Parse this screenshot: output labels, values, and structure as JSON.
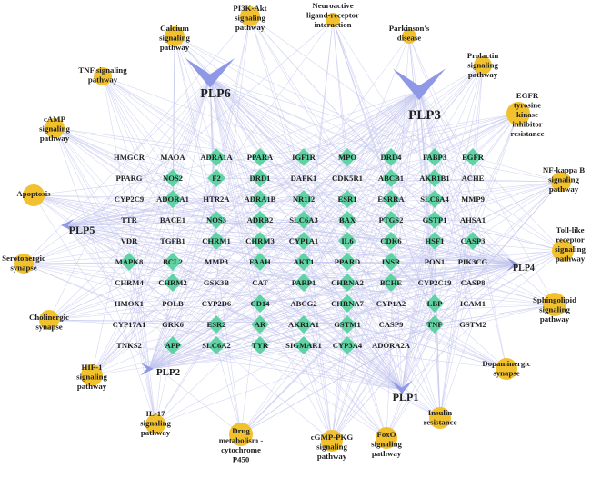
{
  "colors": {
    "gene": "#5fd3a4",
    "pathway": "#f2c12e",
    "compound": "#8e98e6",
    "edge": "#c3c6ee"
  },
  "compounds": [
    "PLP6",
    "PLP3",
    "PLP5",
    "PLP4",
    "PLP2",
    "PLP1"
  ],
  "pathways": [
    [
      "PI3K-Akt",
      "signaling",
      "pathway"
    ],
    [
      "Neuroactive",
      "ligand-receptor",
      "interaction"
    ],
    [
      "Calcium",
      "signaling",
      "pathway"
    ],
    [
      "Parkinson's",
      "disease"
    ],
    [
      "Prolactin",
      "signaling",
      "pathway"
    ],
    [
      "TNF signaling",
      "pathway"
    ],
    [
      "EGFR",
      "tyrosine",
      "kinase",
      "inhibitor",
      "resistance"
    ],
    [
      "cAMP",
      "signaling",
      "pathway"
    ],
    [
      "NF-kappa B",
      "signaling",
      "pathway"
    ],
    [
      "Apoptosis"
    ],
    [
      "Toll-like",
      "receptor",
      "signaling",
      "pathway"
    ],
    [
      "Serotonergic",
      "synapse"
    ],
    [
      "Sphingolipid",
      "signaling",
      "pathway"
    ],
    [
      "Cholinergic",
      "synapse"
    ],
    [
      "Dopaminergic",
      "synapse"
    ],
    [
      "HIF-1",
      "signaling",
      "pathway"
    ],
    [
      "IL-17",
      "signaling",
      "pathway"
    ],
    [
      "Insulin",
      "resistance"
    ],
    [
      "Drug",
      "metabolism -",
      "cytochrome",
      "P450"
    ],
    [
      "cGMP-PKG",
      "signaling",
      "pathway"
    ],
    [
      "FoxO",
      "signaling",
      "pathway"
    ]
  ],
  "genes": [
    [
      "HMGCR",
      "MAOA",
      "ADRA1A",
      "PPARA",
      "IGF1R",
      "MPO",
      "DRD4",
      "FABP3",
      "EGFR"
    ],
    [
      "PPARG",
      "NOS2",
      "F2",
      "DRD1",
      "DAPK1",
      "CDK5R1",
      "ABCB1",
      "AKR1B1",
      "ACHE"
    ],
    [
      "CYP2C9",
      "ADORA1",
      "HTR2A",
      "ADRA1B",
      "NR1I2",
      "ESR1",
      "ESRRA",
      "SLC6A4",
      "MMP9"
    ],
    [
      "TTR",
      "BACE1",
      "NOS3",
      "ADRB2",
      "SLC6A3",
      "BAX",
      "PTGS2",
      "GSTP1",
      "AHSA1"
    ],
    [
      "VDR",
      "TGFB1",
      "CHRM1",
      "CHRM3",
      "CYP1A1",
      "IL6",
      "CDK6",
      "HSF1",
      "CASP3"
    ],
    [
      "MAPK8",
      "BCL2",
      "MMP3",
      "FAAH",
      "AKT1",
      "PPARD",
      "INSR",
      "PON1",
      "PIK3CG"
    ],
    [
      "CHRM4",
      "CHRM2",
      "GSK3B",
      "CAT",
      "PARP1",
      "CHRNA2",
      "BCHE",
      "CYP2C19",
      "CASP8"
    ],
    [
      "HMOX1",
      "POLB",
      "CYP2D6",
      "CD14",
      "ABCG2",
      "CHRNA7",
      "CYP1A2",
      "LBP",
      "ICAM1"
    ],
    [
      "CYP17A1",
      "GRK6",
      "ESR2",
      "AR",
      "AKR1A1",
      "GSTM1",
      "CASP9",
      "TNF",
      "GSTM2"
    ],
    [
      "TNKS2",
      "APP",
      "SLC6A2",
      "TYR",
      "SIGMAR1",
      "CYP3A4",
      "ADORA2A"
    ]
  ]
}
